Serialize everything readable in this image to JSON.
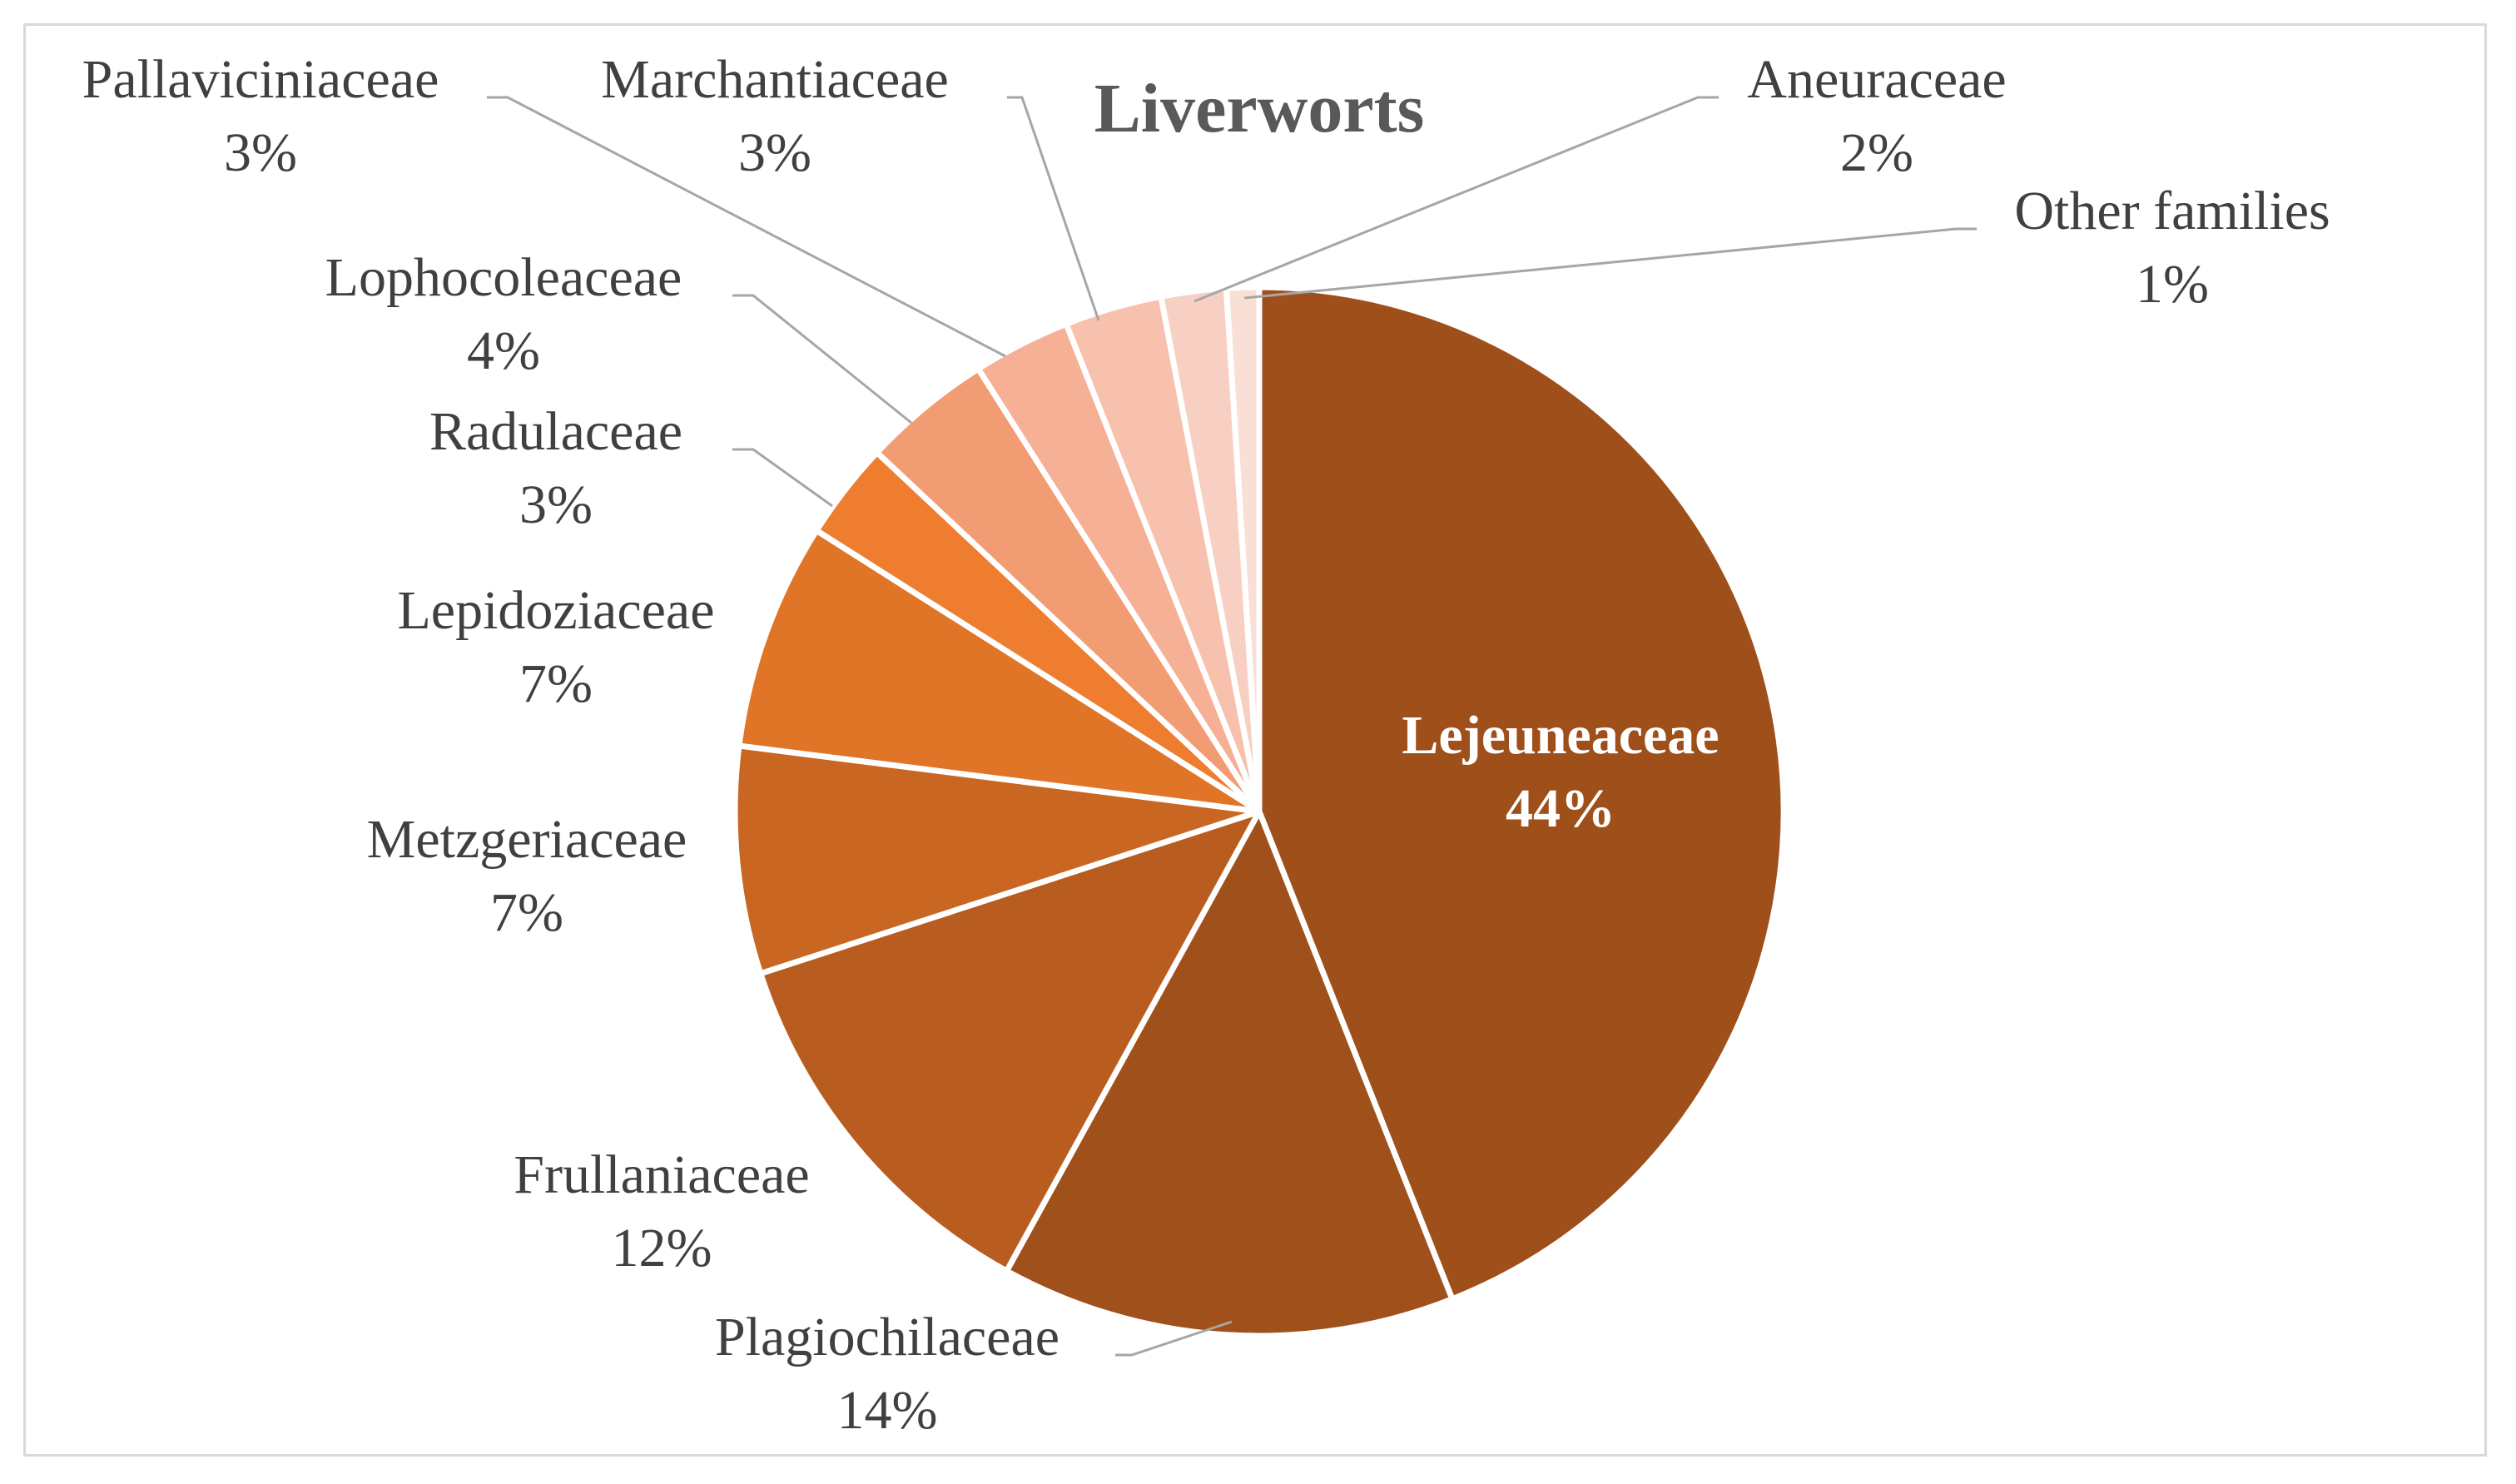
{
  "chart_data": {
    "type": "pie",
    "title": "Liverworts",
    "slices": [
      {
        "name": "Lejeuneaceae",
        "value": 44,
        "label": "44%",
        "color": "#9e4f1a"
      },
      {
        "name": "Plagiochilaceae",
        "value": 14,
        "label": "14%",
        "color": "#a0501b"
      },
      {
        "name": "Frullaniaceae",
        "value": 12,
        "label": "12%",
        "color": "#b85d1f"
      },
      {
        "name": "Metzgeriaceae",
        "value": 7,
        "label": "7%",
        "color": "#c86622"
      },
      {
        "name": "Lepidoziaceae",
        "value": 7,
        "label": "7%",
        "color": "#e07528"
      },
      {
        "name": "Radulaceae",
        "value": 3,
        "label": "3%",
        "color": "#ee7d30"
      },
      {
        "name": "Lophocoleaceae",
        "value": 4,
        "label": "4%",
        "color": "#f29c73"
      },
      {
        "name": "Pallaviciniaceae",
        "value": 3,
        "label": "3%",
        "color": "#f5b095"
      },
      {
        "name": "Marchantiaceae",
        "value": 3,
        "label": "3%",
        "color": "#f7c1ae"
      },
      {
        "name": "Aneuraceae",
        "value": 2,
        "label": "2%",
        "color": "#f8d0c3"
      },
      {
        "name": "Other families",
        "value": 1,
        "label": "1%",
        "color": "#fadfd6"
      }
    ],
    "legend": "none"
  }
}
